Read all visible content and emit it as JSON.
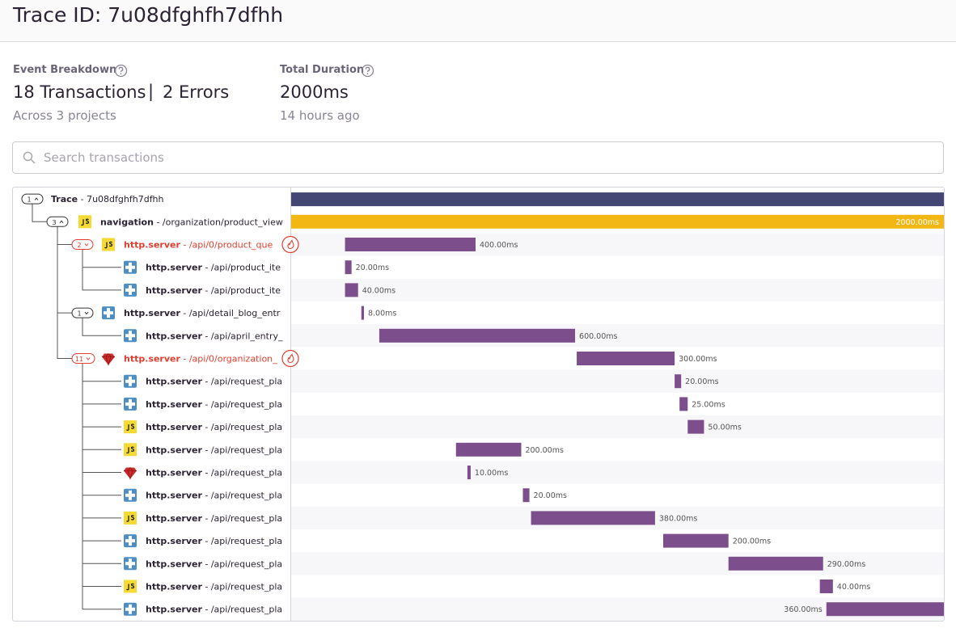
{
  "header": {
    "title": "Trace ID: 7u08dfghfh7dfhh"
  },
  "summary": {
    "event_breakdown_label": "Event Breakdown",
    "transactions": "18 Transactions",
    "separator": "|",
    "errors": "2 Errors",
    "projects": "Across 3 projects",
    "total_duration_label": "Total Duration",
    "total_duration": 2000,
    "total_duration_text": "2000ms",
    "time_ago": "14 hours ago"
  },
  "search": {
    "placeholder": "Search transactions"
  },
  "rows": [
    {
      "op": "Trace",
      "description": "- 7u08dfghfh7dfhh",
      "children": 1
    },
    {
      "op": "navigation",
      "description": "- /organization/product_view",
      "children": 3,
      "start": 0,
      "duration": 2000,
      "duration_label": "2000.00ms"
    },
    {
      "op": "http.server",
      "description": "- /api/0/product_que",
      "children": 2,
      "start": 165,
      "duration": 400,
      "duration_label": "400.00ms"
    },
    {
      "op": "http.server",
      "description": "- /api/product_ite",
      "start": 165,
      "duration": 20,
      "duration_label": "20.00ms"
    },
    {
      "op": "http.server",
      "description": "- /api/product_ite",
      "start": 165,
      "duration": 40,
      "duration_label": "40.00ms"
    },
    {
      "op": "http.server",
      "description": "- /api/detail_blog_entr",
      "children": 1,
      "start": 215,
      "duration": 8,
      "duration_label": "8.00ms"
    },
    {
      "op": "http.server",
      "description": "- /api/april_entry_",
      "start": 270,
      "duration": 600,
      "duration_label": "600.00ms"
    },
    {
      "op": "http.server",
      "description": "- /api/0/organization_",
      "children": 11,
      "start": 875,
      "duration": 300,
      "duration_label": "300.00ms"
    },
    {
      "op": "http.server",
      "description": "- /api/request_pla",
      "start": 1175,
      "duration": 20,
      "duration_label": "20.00ms"
    },
    {
      "op": "http.server",
      "description": "- /api/request_pla",
      "start": 1190,
      "duration": 25,
      "duration_label": "25.00ms"
    },
    {
      "op": "http.server",
      "description": "- /api/request_pla",
      "start": 1215,
      "duration": 50,
      "duration_label": "50.00ms"
    },
    {
      "op": "http.server",
      "description": "- /api/request_pla",
      "start": 505,
      "duration": 200,
      "duration_label": "200.00ms"
    },
    {
      "op": "http.server",
      "description": "- /api/request_pla",
      "start": 540,
      "duration": 10,
      "duration_label": "10.00ms"
    },
    {
      "op": "http.server",
      "description": "- /api/request_pla",
      "start": 710,
      "duration": 20,
      "duration_label": "20.00ms"
    },
    {
      "op": "http.server",
      "description": "- /api/request_pla",
      "start": 735,
      "duration": 380,
      "duration_label": "380.00ms"
    },
    {
      "op": "http.server",
      "description": "- /api/request_pla",
      "start": 1140,
      "duration": 200,
      "duration_label": "200.00ms"
    },
    {
      "op": "http.server",
      "description": "- /api/request_pla",
      "start": 1340,
      "duration": 290,
      "duration_label": "290.00ms"
    },
    {
      "op": "http.server",
      "description": "- /api/request_pla",
      "start": 1620,
      "duration": 40,
      "duration_label": "40.00ms"
    },
    {
      "op": "http.server",
      "description": "- /api/request_pla",
      "start": 1640,
      "duration": 360,
      "duration_label": "360.00ms"
    }
  ]
}
